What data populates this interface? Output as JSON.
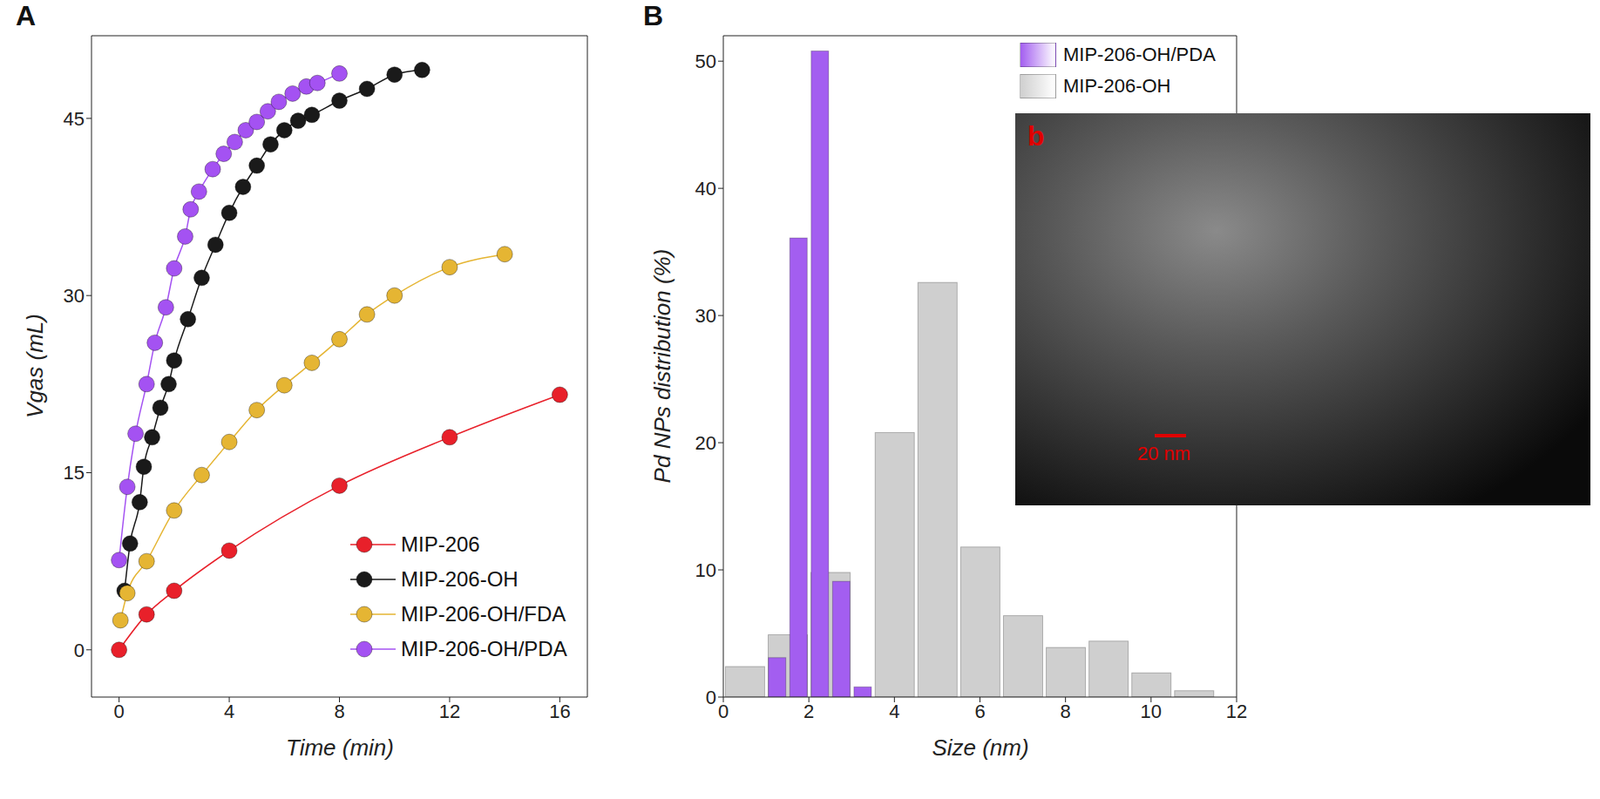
{
  "chart_data": [
    {
      "panel": "A",
      "type": "line",
      "x_label": "Time (min)",
      "y_label": "Vgas (mL)",
      "xlim": [
        -1,
        17
      ],
      "xticks": [
        0,
        4,
        8,
        12,
        16
      ],
      "ylim": [
        -4,
        52
      ],
      "yticks": [
        0,
        15,
        30,
        45
      ],
      "legend": "lower right",
      "marker": "circle",
      "series": [
        {
          "name": "MIP-206",
          "color": "#e8202a",
          "x": [
            0,
            1,
            2,
            4,
            8,
            12,
            16
          ],
          "values": [
            0,
            3,
            5,
            8.4,
            13.9,
            18,
            21.6
          ]
        },
        {
          "name": "MIP-206-OH",
          "color": "#1a1a1a",
          "x": [
            0.2,
            0.4,
            0.75,
            0.9,
            1.2,
            1.5,
            1.8,
            2,
            2.5,
            3,
            3.5,
            4,
            4.5,
            5,
            5.5,
            6,
            6.5,
            7,
            8,
            9,
            10,
            11
          ],
          "values": [
            5,
            9,
            12.5,
            15.5,
            18,
            20.5,
            22.5,
            24.5,
            28,
            31.5,
            34.3,
            37,
            39.2,
            41,
            42.8,
            44,
            44.8,
            45.3,
            46.5,
            47.5,
            48.7,
            49.1
          ]
        },
        {
          "name": "MIP-206-OH/FDA",
          "color": "#e5b533",
          "x": [
            0.05,
            0.3,
            1,
            2,
            3,
            4,
            5,
            6,
            7,
            8,
            9,
            10,
            12,
            14
          ],
          "values": [
            2.5,
            4.8,
            7.5,
            11.8,
            14.8,
            17.6,
            20.3,
            22.4,
            24.3,
            26.3,
            28.4,
            30,
            32.4,
            33.5
          ]
        },
        {
          "name": "MIP-206-OH/PDA",
          "color": "#a452f2",
          "x": [
            0,
            0.3,
            0.6,
            1,
            1.3,
            1.7,
            2,
            2.4,
            2.6,
            2.9,
            3.4,
            3.8,
            4.2,
            4.6,
            5,
            5.4,
            5.8,
            6.3,
            6.8,
            7.2,
            8
          ],
          "values": [
            7.6,
            13.8,
            18.3,
            22.5,
            26,
            29,
            32.3,
            35,
            37.3,
            38.8,
            40.7,
            42,
            43,
            44,
            44.7,
            45.6,
            46.4,
            47.1,
            47.7,
            48,
            48.8
          ]
        }
      ]
    },
    {
      "panel": "B",
      "type": "bar",
      "x_label": "Size (nm)",
      "y_label": "Pd NPs distribution (%)",
      "xlim": [
        0,
        12
      ],
      "xticks": [
        0,
        2,
        4,
        6,
        8,
        10,
        12
      ],
      "ylim": [
        0,
        52
      ],
      "yticks": [
        0,
        10,
        20,
        30,
        40,
        50
      ],
      "legend": "upper right",
      "series": [
        {
          "name": "MIP-206-OH/PDA",
          "color": "#a35ef0",
          "x": [
            1.25,
            1.75,
            2.25,
            2.75,
            3.25
          ],
          "values": [
            3.1,
            36.1,
            50.8,
            9.1,
            0.8
          ]
        },
        {
          "name": "MIP-206-OH",
          "color": "#cfcfcf",
          "x": [
            0.5,
            1.5,
            2.5,
            4,
            5,
            6,
            7,
            8,
            9,
            10,
            11
          ],
          "values": [
            2.4,
            4.9,
            9.8,
            20.8,
            32.6,
            11.8,
            6.4,
            3.9,
            4.4,
            1.9,
            0.5
          ]
        }
      ],
      "inset": {
        "label": "b",
        "scale_bar": "20 nm"
      }
    }
  ]
}
